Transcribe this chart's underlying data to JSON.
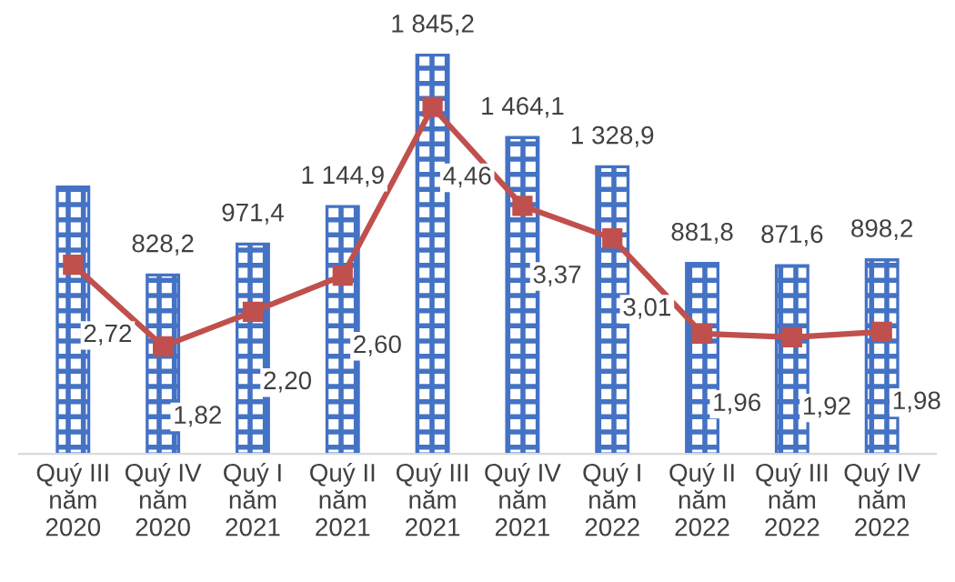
{
  "chart_data": {
    "type": "bar",
    "categories": [
      "Quý III\nnăm\n2020",
      "Quý IV\nnăm\n2020",
      "Quý I\nnăm\n2021",
      "Quý II\nnăm\n2021",
      "Quý III\nnăm\n2021",
      "Quý IV\nnăm\n2021",
      "Quý I\nnăm\n2022",
      "Quý II\nnăm\n2022",
      "Quý III\nnăm\n2022",
      "Quý IV\nnăm\n2022"
    ],
    "series": [
      {
        "color": "#4472c4",
        "values": [
          1235,
          828.2,
          971.4,
          1144.9,
          1845.2,
          1464.1,
          1328.9,
          881.8,
          871.6,
          898.2
        ],
        "value_labels": [
          null,
          "828,2",
          "971,4",
          "1 144,9",
          "1 845,2",
          "1 464,1",
          "1 328,9",
          "881,8",
          "871,6",
          "898,2"
        ]
      },
      {
        "type": "line",
        "axis": "y2",
        "color": "#c0504d",
        "marker": "square",
        "line_style": "solid",
        "values": [
          2.72,
          1.82,
          2.2,
          2.6,
          4.46,
          3.37,
          3.01,
          1.96,
          1.92,
          1.98
        ],
        "value_labels": [
          "2,72",
          "1,82",
          "2,20",
          "2,60",
          "4,46",
          "3,37",
          "3,01",
          "1,96",
          "1,92",
          "1,98"
        ]
      }
    ],
    "grid": false,
    "legend": false,
    "tick_labels": "x"
  }
}
